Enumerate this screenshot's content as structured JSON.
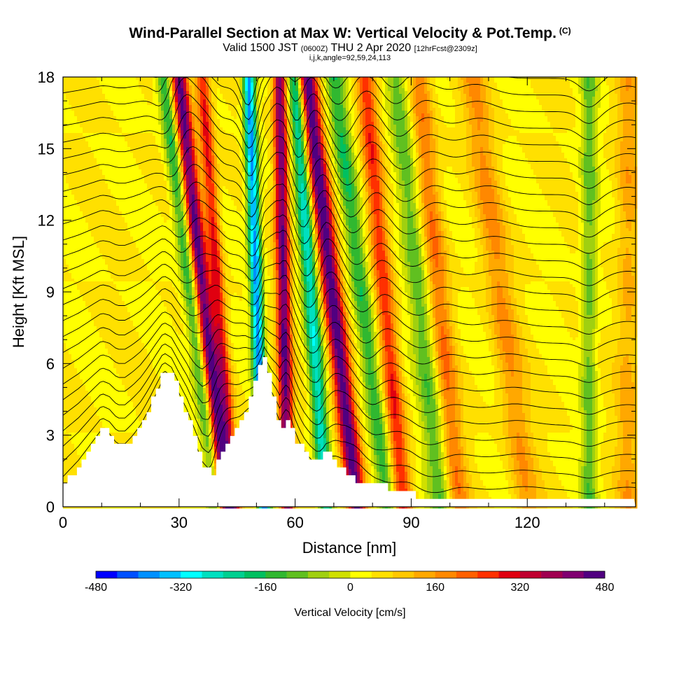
{
  "title": {
    "main": "Wind-Parallel Section at Max W: Vertical Velocity & Pot.Temp.",
    "copyright": "(C)",
    "valid_prefix": "Valid 1500 JST",
    "valid_zulu": "(0600Z)",
    "valid_date": "THU 2 Apr 2020",
    "forecast": "[12hrFcst@2309z]",
    "params": "i,j,k,angle=92,59,24,113"
  },
  "chart_data": {
    "type": "heatmap",
    "xlabel": "Distance [nm]",
    "ylabel": "Height [Kft MSL]",
    "xlim": [
      0,
      148
    ],
    "ylim": [
      0,
      18
    ],
    "x_ticks": [
      0,
      30,
      60,
      90,
      120
    ],
    "y_ticks": [
      0,
      3,
      6,
      9,
      12,
      15,
      18
    ],
    "colorbar": {
      "label": "Vertical Velocity [cm/s]",
      "min": -480,
      "max": 480,
      "step": 40,
      "tick_labels": [
        "-480",
        "-320",
        "-160",
        "0",
        "160",
        "320",
        "480"
      ],
      "colors": [
        "#0000ff",
        "#0050ff",
        "#0090ff",
        "#00c0ff",
        "#00ffff",
        "#00e0c0",
        "#00d090",
        "#00c060",
        "#30b830",
        "#60c020",
        "#a0d010",
        "#d0e000",
        "#ffff00",
        "#ffe000",
        "#ffc800",
        "#ffa800",
        "#ff8800",
        "#ff6000",
        "#ff3000",
        "#e00010",
        "#c00030",
        "#a00050",
        "#800070",
        "#500080"
      ]
    },
    "terrain_profile": {
      "distance_nm": [
        0,
        2,
        4,
        6,
        8,
        10,
        12,
        14,
        16,
        18,
        20,
        22,
        24,
        26,
        28,
        30,
        32,
        34,
        36,
        38,
        40,
        42,
        44,
        46,
        48,
        50,
        52,
        54,
        56,
        58,
        60,
        62,
        64,
        66,
        68,
        70,
        72,
        74,
        76,
        78,
        80,
        82,
        84,
        86,
        88,
        90,
        92,
        94,
        96,
        100,
        110,
        120,
        130,
        140,
        148
      ],
      "height_kft": [
        1.0,
        1.4,
        1.8,
        2.3,
        2.8,
        3.3,
        3.1,
        2.6,
        2.6,
        3.0,
        3.5,
        4.2,
        5.0,
        5.8,
        5.5,
        4.6,
        3.8,
        2.8,
        1.8,
        1.3,
        2.0,
        2.6,
        3.2,
        3.8,
        4.6,
        5.6,
        6.5,
        4.6,
        3.2,
        3.6,
        2.8,
        2.3,
        2.1,
        2.0,
        2.3,
        2.0,
        1.5,
        1.2,
        1.1,
        1.0,
        1.0,
        1.0,
        0.8,
        0.6,
        0.5,
        0.5,
        0.4,
        0.35,
        0.35,
        0.35,
        0.35,
        0.35,
        0.35,
        0.35,
        0.35
      ]
    },
    "updraft_bands": [
      {
        "x_base_nm": 42,
        "x_top_nm": 30,
        "peak_cm_s": 420,
        "width_nm": 2.2
      },
      {
        "x_base_nm": 44,
        "x_top_nm": 36,
        "peak_cm_s": 260,
        "width_nm": 1.8
      },
      {
        "x_base_nm": 58,
        "x_top_nm": 56,
        "peak_cm_s": 400,
        "width_nm": 1.8
      },
      {
        "x_base_nm": 76,
        "x_top_nm": 63,
        "peak_cm_s": 440,
        "width_nm": 2.5
      },
      {
        "x_base_nm": 88,
        "x_top_nm": 78,
        "peak_cm_s": 240,
        "width_nm": 2.5
      },
      {
        "x_base_nm": 102,
        "x_top_nm": 92,
        "peak_cm_s": 160,
        "width_nm": 3.0
      },
      {
        "x_base_nm": 120,
        "x_top_nm": 106,
        "peak_cm_s": 120,
        "width_nm": 3.5
      },
      {
        "x_base_nm": 146,
        "x_top_nm": 146,
        "peak_cm_s": 100,
        "width_nm": 3.0
      }
    ],
    "downdraft_bands": [
      {
        "x_base_nm": 52,
        "x_top_nm": 48,
        "peak_cm_s": -420,
        "width_nm": 1.6
      },
      {
        "x_base_nm": 40,
        "x_top_nm": 26,
        "peak_cm_s": -220,
        "width_nm": 2.0
      },
      {
        "x_base_nm": 68,
        "x_top_nm": 60,
        "peak_cm_s": -300,
        "width_nm": 2.0
      },
      {
        "x_base_nm": 84,
        "x_top_nm": 70,
        "peak_cm_s": -200,
        "width_nm": 2.5
      },
      {
        "x_base_nm": 98,
        "x_top_nm": 86,
        "peak_cm_s": -160,
        "width_nm": 3.0
      },
      {
        "x_base_nm": 136,
        "x_top_nm": 136,
        "peak_cm_s": -140,
        "width_nm": 2.0
      }
    ]
  }
}
